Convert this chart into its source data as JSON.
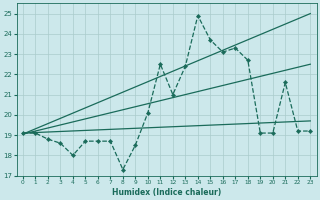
{
  "xlabel": "Humidex (Indice chaleur)",
  "xlim": [
    -0.5,
    23.5
  ],
  "ylim": [
    17,
    25.5
  ],
  "yticks": [
    17,
    18,
    19,
    20,
    21,
    22,
    23,
    24,
    25
  ],
  "xticks": [
    0,
    1,
    2,
    3,
    4,
    5,
    6,
    7,
    8,
    9,
    10,
    11,
    12,
    13,
    14,
    15,
    16,
    17,
    18,
    19,
    20,
    21,
    22,
    23
  ],
  "bg_color": "#cce8eb",
  "grid_color": "#aacccc",
  "line_color": "#1a6b5a",
  "main_data_x": [
    0,
    1,
    2,
    3,
    4,
    5,
    6,
    7,
    8,
    9,
    10,
    11,
    12,
    13,
    14,
    15,
    16,
    17,
    18,
    19,
    20,
    21,
    22,
    23
  ],
  "main_data_y": [
    19.1,
    19.1,
    18.8,
    18.6,
    18.0,
    18.7,
    18.7,
    18.7,
    17.3,
    18.5,
    20.1,
    22.5,
    21.0,
    22.4,
    24.9,
    23.7,
    23.1,
    23.3,
    22.7,
    19.1,
    19.1,
    21.6,
    19.2,
    19.2
  ],
  "trend1_x": [
    0,
    23
  ],
  "trend1_y": [
    19.05,
    25.0
  ],
  "trend2_x": [
    0,
    23
  ],
  "trend2_y": [
    19.05,
    22.5
  ],
  "trend3_x": [
    0,
    23
  ],
  "trend3_y": [
    19.1,
    19.7
  ]
}
